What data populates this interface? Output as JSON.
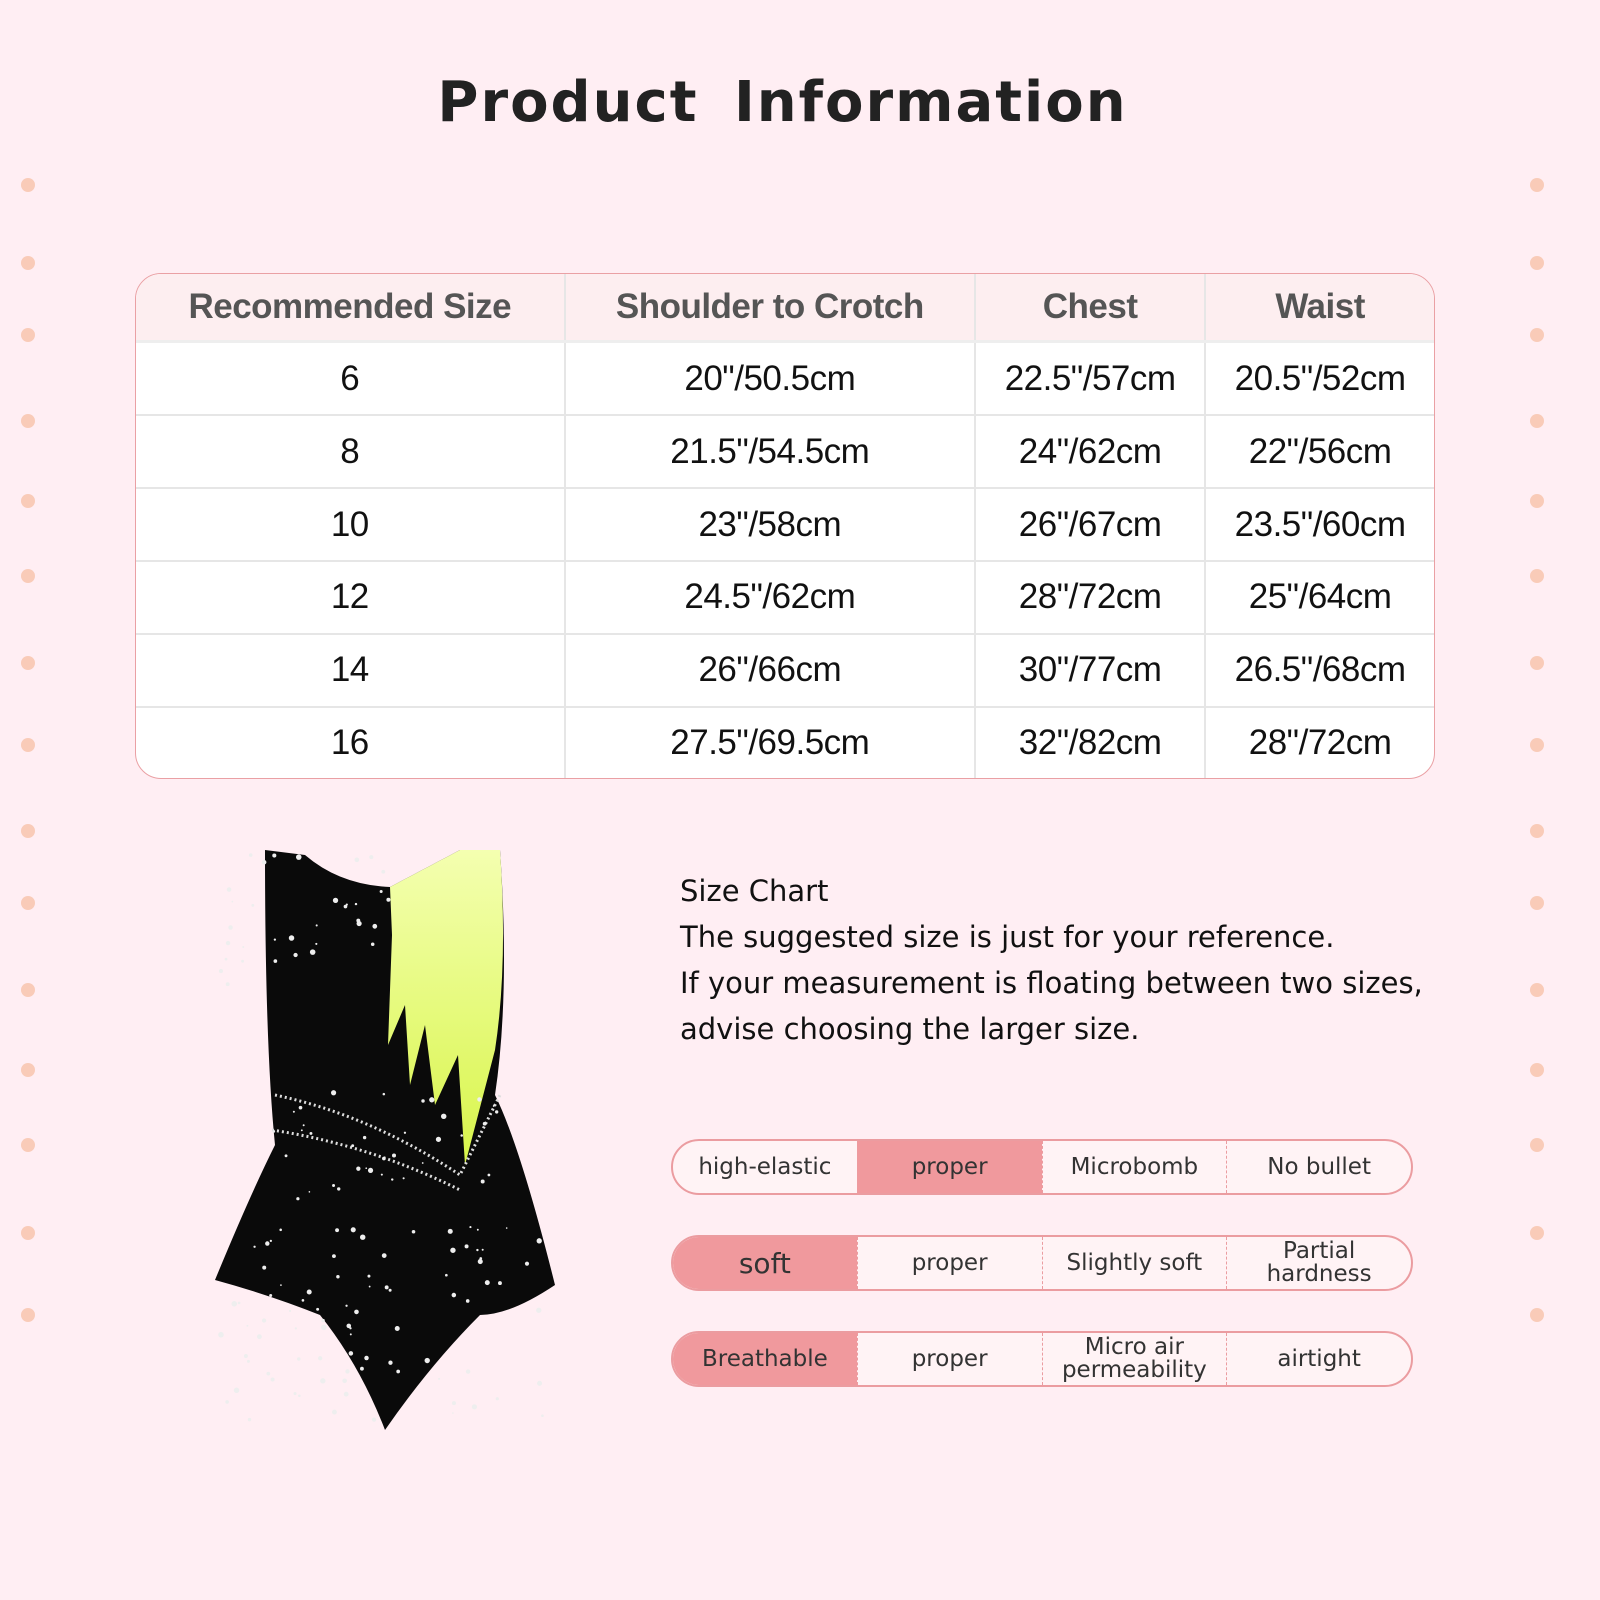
{
  "title": "Product  Information",
  "size_table": {
    "headers": [
      "Recommended Size",
      "Shoulder to Crotch",
      "Chest",
      "Waist"
    ],
    "rows": [
      [
        "6",
        "20\"/50.5cm",
        "22.5\"/57cm",
        "20.5\"/52cm"
      ],
      [
        "8",
        "21.5\"/54.5cm",
        "24\"/62cm",
        "22\"/56cm"
      ],
      [
        "10",
        "23\"/58cm",
        "26\"/67cm",
        "23.5\"/60cm"
      ],
      [
        "12",
        "24.5\"/62cm",
        "28\"/72cm",
        "25\"/64cm"
      ],
      [
        "14",
        "26\"/66cm",
        "30\"/77cm",
        "26.5\"/68cm"
      ],
      [
        "16",
        "27.5\"/69.5cm",
        "32\"/82cm",
        "28\"/72cm"
      ]
    ]
  },
  "note": {
    "lines": [
      "Size Chart",
      "The suggested size is just for your reference.",
      "If your measurement is floating between two sizes,",
      "advise choosing the larger size."
    ]
  },
  "attributes": [
    {
      "cells": [
        "high-elastic",
        "proper",
        "Microbomb",
        "No bullet"
      ],
      "selected": 1
    },
    {
      "cells": [
        "soft",
        "proper",
        "Slightly soft",
        "Partial hardness"
      ],
      "selected": 0
    },
    {
      "cells": [
        "Breathable",
        "proper",
        "Micro air permeability",
        "airtight"
      ],
      "selected": 0
    }
  ],
  "colors": {
    "background": "#ffeef3",
    "accent": "#f0999d",
    "border": "#eb9ca0",
    "dress_body": "#0a0a0a",
    "dress_panel": "#e8ff6a"
  }
}
